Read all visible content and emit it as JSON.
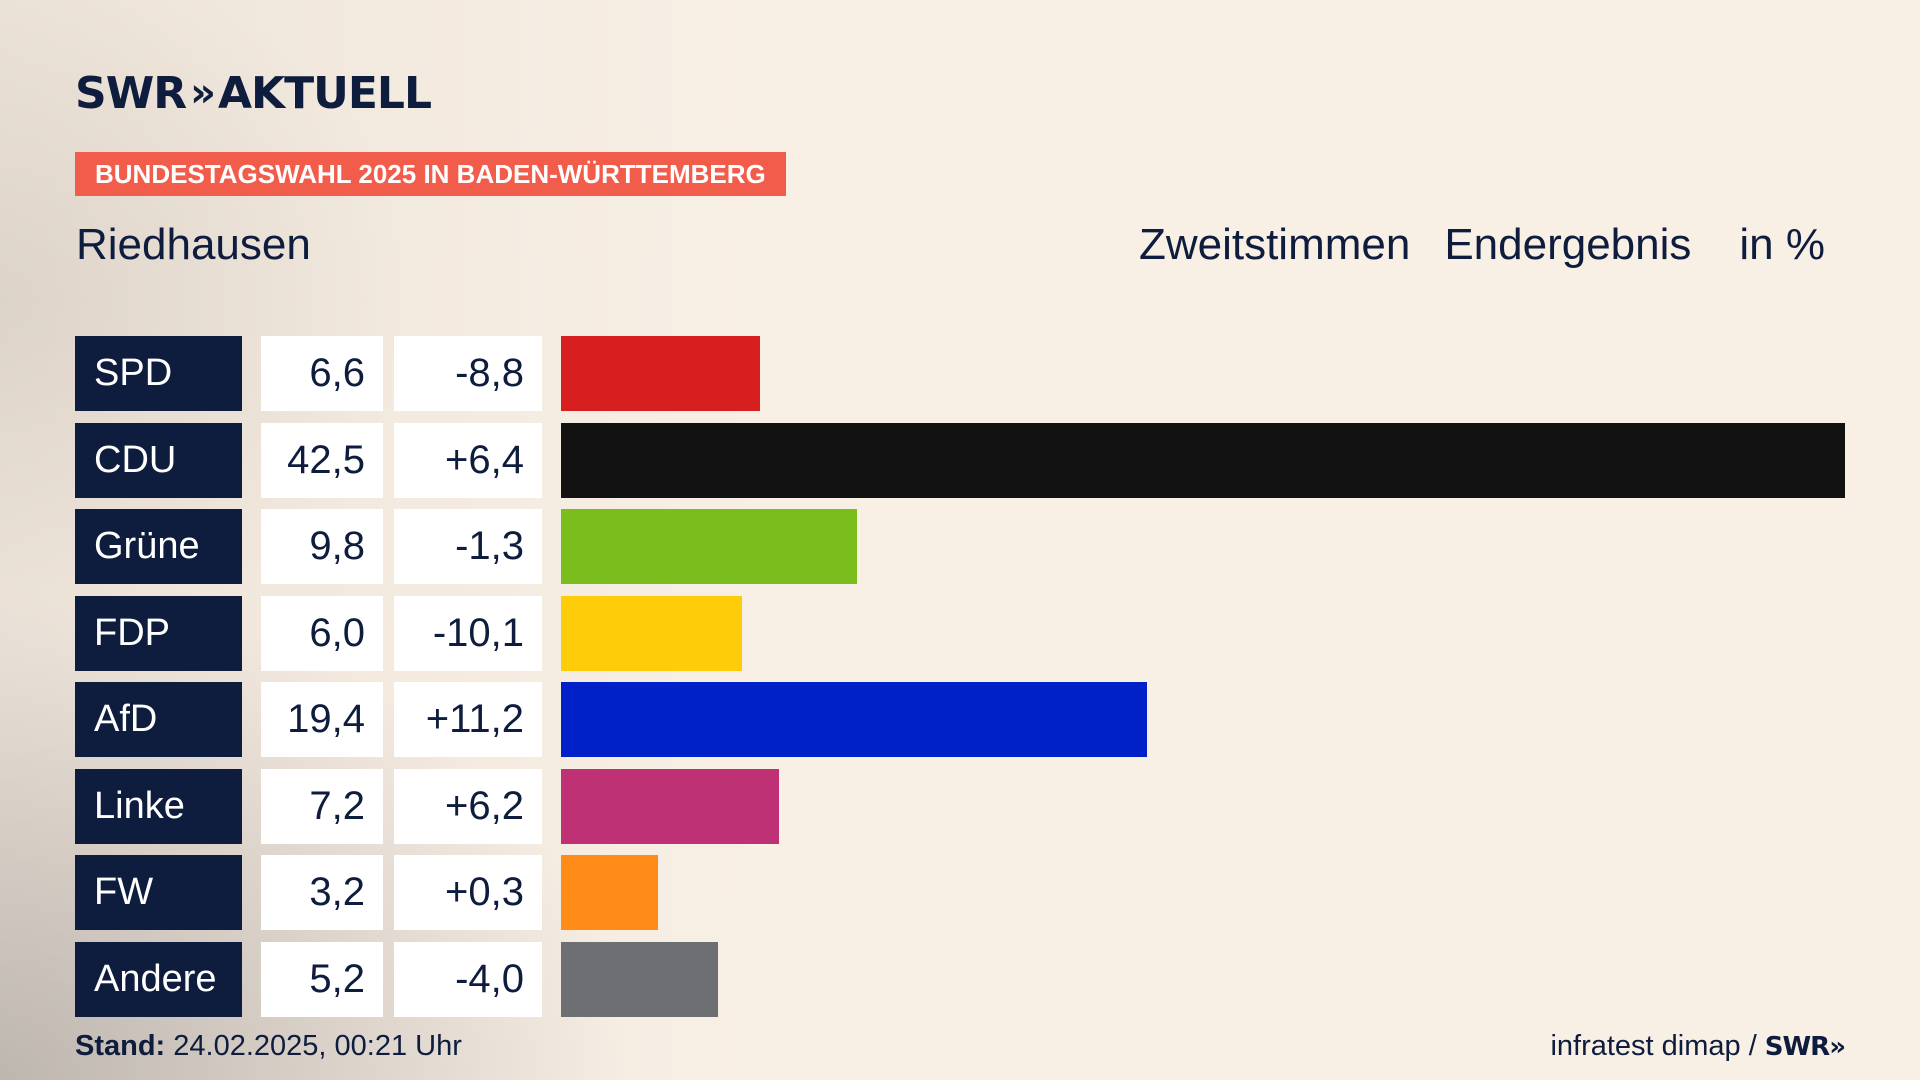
{
  "brand": {
    "name": "SWR",
    "chevrons": "»",
    "product": "AKTUELL"
  },
  "banner": "BUNDESTAGSWAHL 2025 IN BADEN-WÜRTTEMBERG",
  "place": "Riedhausen",
  "header": {
    "vote_type": "Zweitstimmen",
    "result_type": "Endergebnis",
    "unit": "in %"
  },
  "footer": {
    "stand_label": "Stand:",
    "stand_value": "24.02.2025, 00:21 Uhr",
    "source": "infratest dimap /",
    "source_logo": "SWR»"
  },
  "chart_data": {
    "type": "bar",
    "categories": [
      "SPD",
      "CDU",
      "Grüne",
      "FDP",
      "AfD",
      "Linke",
      "FW",
      "Andere"
    ],
    "values": [
      6.6,
      42.5,
      9.8,
      6.0,
      19.4,
      7.2,
      3.2,
      5.2
    ],
    "value_labels": [
      "6,6",
      "42,5",
      "9,8",
      "6,0",
      "19,4",
      "7,2",
      "3,2",
      "5,2"
    ],
    "change_labels": [
      "-8,8",
      "+6,4",
      "-1,3",
      "-10,1",
      "+11,2",
      "+6,2",
      "+0,3",
      "-4,0"
    ],
    "changes": [
      -8.8,
      6.4,
      -1.3,
      -10.1,
      11.2,
      6.2,
      0.3,
      -4.0
    ],
    "colors": [
      "#d71f1f",
      "#121212",
      "#7cbd1e",
      "#ffcc0a",
      "#0020c8",
      "#be3174",
      "#ff8c17",
      "#6e6f72"
    ],
    "xlim": [
      0,
      42.5
    ]
  }
}
